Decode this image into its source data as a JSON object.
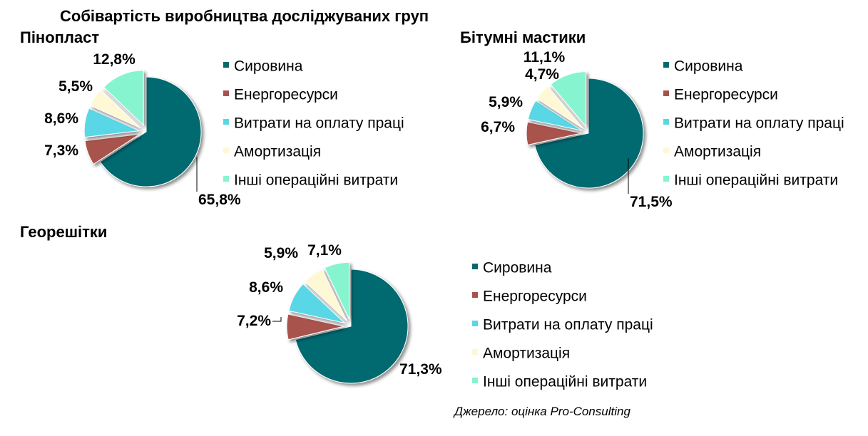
{
  "title": "Собівартість виробництва досліджуваних груп",
  "source": "Джерело: оцінка Pro-Consulting",
  "colors": {
    "raw_materials": "#006a70",
    "energy": "#a9524d",
    "labor": "#5ad7e7",
    "amortization": "#fff8d5",
    "other": "#86f4cf"
  },
  "chart_data": [
    {
      "type": "pie",
      "title": "Пінопласт",
      "categories": [
        "Сировина",
        "Енергоресурси",
        "Витрати на оплату праці",
        "Амортизація",
        "Інші операційні витрати"
      ],
      "values": [
        65.8,
        7.3,
        8.6,
        5.5,
        12.8
      ],
      "labels": [
        "65,8%",
        "7,3%",
        "8,6%",
        "5,5%",
        "12,8%"
      ],
      "legend": "right"
    },
    {
      "type": "pie",
      "title": "Бітумні мастики",
      "categories": [
        "Сировина",
        "Енергоресурси",
        "Витрати на оплату праці",
        "Амортизація",
        "Інші операційні витрати"
      ],
      "values": [
        71.5,
        6.7,
        5.9,
        4.7,
        11.1
      ],
      "labels": [
        "71,5%",
        "6,7%",
        "5,9%",
        "4,7%",
        "11,1%"
      ],
      "legend": "right"
    },
    {
      "type": "pie",
      "title": "Георешітки",
      "categories": [
        "Сировина",
        "Енергоресурси",
        "Витрати на оплату праці",
        "Амортизація",
        "Інші операційні витрати"
      ],
      "values": [
        71.3,
        7.2,
        8.6,
        5.9,
        7.1
      ],
      "labels": [
        "71,3%",
        "7,2%",
        "8,6%",
        "5,9%",
        "7,1%"
      ],
      "legend": "right"
    }
  ]
}
